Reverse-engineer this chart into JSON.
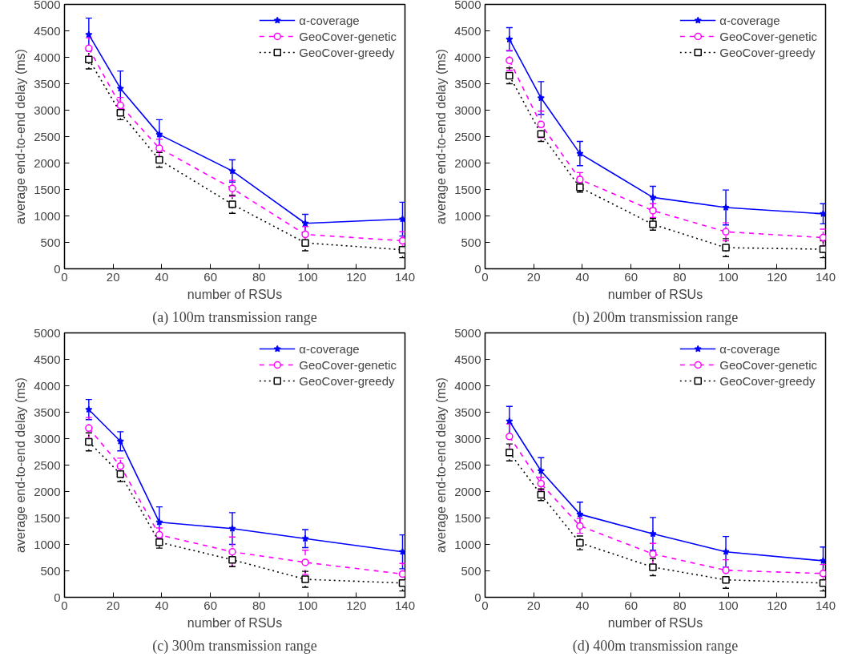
{
  "chart_data": [
    {
      "type": "line",
      "title": "(a) 100m transmission range",
      "xlabel": "number of RSUs",
      "ylabel": "average end-to-end delay (ms)",
      "x": [
        10,
        23,
        39,
        69,
        99,
        139
      ],
      "xlim": [
        0,
        140
      ],
      "xticks": [
        0,
        20,
        40,
        60,
        80,
        100,
        120,
        140
      ],
      "ylim": [
        0,
        5000
      ],
      "yticks": [
        0,
        500,
        1000,
        1500,
        2000,
        2500,
        3000,
        3500,
        4000,
        4500,
        5000
      ],
      "grid": false,
      "legend": "top right",
      "series": [
        {
          "name": "α-coverage",
          "color": "#0000ff",
          "marker": "star",
          "line_style": "solid",
          "values": [
            4430,
            3410,
            2540,
            1850,
            860,
            940
          ],
          "errors": [
            310,
            330,
            280,
            210,
            170,
            320
          ]
        },
        {
          "name": "GeoCover-genetic",
          "color": "#ff00ff",
          "marker": "circle",
          "line_style": "dashed",
          "values": [
            4170,
            3090,
            2280,
            1520,
            650,
            530
          ],
          "errors": [
            200,
            150,
            170,
            150,
            150,
            170
          ]
        },
        {
          "name": "GeoCover-greedy",
          "color": "#000000",
          "marker": "square",
          "line_style": "dotted",
          "values": [
            3960,
            2950,
            2060,
            1220,
            490,
            360
          ],
          "errors": [
            180,
            130,
            140,
            170,
            150,
            150
          ]
        }
      ]
    },
    {
      "type": "line",
      "title": "(b) 200m transmission range",
      "xlabel": "number of RSUs",
      "ylabel": "average end-to-end delay (ms)",
      "x": [
        10,
        23,
        39,
        69,
        99,
        139
      ],
      "xlim": [
        0,
        140
      ],
      "xticks": [
        0,
        20,
        40,
        60,
        80,
        100,
        120,
        140
      ],
      "ylim": [
        0,
        5000
      ],
      "yticks": [
        0,
        500,
        1000,
        1500,
        2000,
        2500,
        3000,
        3500,
        4000,
        4500,
        5000
      ],
      "grid": false,
      "legend": "top right",
      "series": [
        {
          "name": "α-coverage",
          "color": "#0000ff",
          "marker": "star",
          "line_style": "solid",
          "values": [
            4340,
            3230,
            2180,
            1350,
            1160,
            1040
          ],
          "errors": [
            220,
            310,
            230,
            210,
            330,
            190
          ]
        },
        {
          "name": "GeoCover-genetic",
          "color": "#ff00ff",
          "marker": "circle",
          "line_style": "dashed",
          "values": [
            3940,
            2730,
            1690,
            1100,
            700,
            590
          ],
          "errors": [
            190,
            250,
            130,
            130,
            170,
            160
          ]
        },
        {
          "name": "GeoCover-greedy",
          "color": "#000000",
          "marker": "square",
          "line_style": "dotted",
          "values": [
            3650,
            2550,
            1540,
            840,
            400,
            370
          ],
          "errors": [
            150,
            140,
            90,
            110,
            170,
            160
          ]
        }
      ]
    },
    {
      "type": "line",
      "title": "(c) 300m transmission range",
      "xlabel": "number of RSUs",
      "ylabel": "average end-to-end delay (ms)",
      "x": [
        10,
        23,
        39,
        69,
        99,
        139
      ],
      "xlim": [
        0,
        140
      ],
      "xticks": [
        0,
        20,
        40,
        60,
        80,
        100,
        120,
        140
      ],
      "ylim": [
        0,
        5000
      ],
      "yticks": [
        0,
        500,
        1000,
        1500,
        2000,
        2500,
        3000,
        3500,
        4000,
        4500,
        5000
      ],
      "grid": false,
      "legend": "top right",
      "series": [
        {
          "name": "α-coverage",
          "color": "#0000ff",
          "marker": "star",
          "line_style": "solid",
          "values": [
            3550,
            2950,
            1420,
            1300,
            1110,
            860
          ],
          "errors": [
            190,
            180,
            290,
            300,
            170,
            320
          ]
        },
        {
          "name": "GeoCover-genetic",
          "color": "#ff00ff",
          "marker": "circle",
          "line_style": "dashed",
          "values": [
            3200,
            2480,
            1180,
            860,
            660,
            440
          ],
          "errors": [
            200,
            150,
            130,
            280,
            230,
            200
          ]
        },
        {
          "name": "GeoCover-greedy",
          "color": "#000000",
          "marker": "square",
          "line_style": "dotted",
          "values": [
            2940,
            2330,
            1040,
            710,
            340,
            270
          ],
          "errors": [
            170,
            140,
            110,
            130,
            150,
            150
          ]
        }
      ]
    },
    {
      "type": "line",
      "title": "(d) 400m transmission range",
      "xlabel": "number of RSUs",
      "ylabel": "average end-to-end delay (ms)",
      "x": [
        10,
        23,
        39,
        69,
        99,
        139
      ],
      "xlim": [
        0,
        140
      ],
      "xticks": [
        0,
        20,
        40,
        60,
        80,
        100,
        120,
        140
      ],
      "ylim": [
        0,
        5000
      ],
      "yticks": [
        0,
        500,
        1000,
        1500,
        2000,
        2500,
        3000,
        3500,
        4000,
        4500,
        5000
      ],
      "grid": false,
      "legend": "top right",
      "series": [
        {
          "name": "α-coverage",
          "color": "#0000ff",
          "marker": "star",
          "line_style": "solid",
          "values": [
            3330,
            2390,
            1570,
            1200,
            860,
            690
          ],
          "errors": [
            280,
            250,
            230,
            310,
            290,
            260
          ]
        },
        {
          "name": "GeoCover-genetic",
          "color": "#ff00ff",
          "marker": "circle",
          "line_style": "dashed",
          "values": [
            3040,
            2150,
            1350,
            820,
            510,
            450
          ],
          "errors": [
            240,
            120,
            140,
            200,
            200,
            170
          ]
        },
        {
          "name": "GeoCover-greedy",
          "color": "#000000",
          "marker": "square",
          "line_style": "dotted",
          "values": [
            2740,
            1940,
            1030,
            570,
            330,
            270
          ],
          "errors": [
            160,
            110,
            130,
            160,
            160,
            150
          ]
        }
      ]
    }
  ]
}
